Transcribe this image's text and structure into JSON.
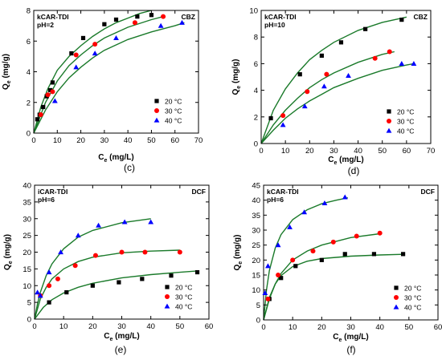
{
  "chart_data": [
    {
      "type": "scatter",
      "caption": "(c)",
      "corner_label": "CBZ",
      "note_lines": [
        "kCAR-TDI",
        "pH=2"
      ],
      "xlabel_main": "C",
      "xlabel_sub": "e",
      "xlabel_unit": " (mg/L)",
      "ylabel_main": "Q",
      "ylabel_sub": "e",
      "ylabel_unit": " (mg/g)",
      "xlim": [
        0,
        70
      ],
      "ylim": [
        0,
        8
      ],
      "xticks": [
        0,
        10,
        20,
        30,
        40,
        50,
        60,
        70
      ],
      "yticks": [
        0,
        2,
        4,
        6,
        8
      ],
      "legend_position": "bottom-right",
      "fit_lines": true,
      "series": [
        {
          "name": "20 °C",
          "marker": "square",
          "color": "#000000",
          "x": [
            1.5,
            2.5,
            4,
            5.5,
            7,
            8,
            16,
            21,
            30,
            35,
            44,
            50
          ],
          "y": [
            0.9,
            1.2,
            1.7,
            2.4,
            2.8,
            3.3,
            5.2,
            6.2,
            7.1,
            7.4,
            7.6,
            7.7
          ],
          "fit_x": [
            0,
            3,
            6,
            10,
            15,
            20,
            25,
            30,
            35,
            40,
            45,
            50
          ],
          "fit_y": [
            0,
            1.7,
            2.9,
            4.1,
            5.0,
            5.7,
            6.3,
            6.8,
            7.2,
            7.5,
            7.8,
            8.0
          ]
        },
        {
          "name": "30 °C",
          "marker": "circle",
          "color": "#ff0000",
          "x": [
            3,
            6,
            8,
            18,
            26,
            43,
            55
          ],
          "y": [
            1.2,
            2.5,
            2.7,
            5.1,
            5.8,
            7.2,
            7.6
          ],
          "fit_x": [
            0,
            5,
            10,
            15,
            20,
            25,
            30,
            40,
            50,
            55
          ],
          "fit_y": [
            0,
            2.0,
            3.4,
            4.4,
            5.1,
            5.7,
            6.2,
            6.9,
            7.4,
            7.6
          ]
        },
        {
          "name": "40 °C",
          "marker": "triangle",
          "color": "#0000ff",
          "x": [
            9,
            18,
            26,
            35,
            54,
            63
          ],
          "y": [
            2.1,
            4.3,
            5.2,
            6.2,
            7.0,
            7.2
          ],
          "fit_x": [
            0,
            5,
            10,
            15,
            20,
            25,
            30,
            40,
            50,
            60,
            64
          ],
          "fit_y": [
            0,
            1.5,
            2.7,
            3.6,
            4.3,
            4.9,
            5.4,
            6.1,
            6.6,
            7.0,
            7.2
          ]
        }
      ]
    },
    {
      "type": "scatter",
      "caption": "(d)",
      "corner_label": "CBZ",
      "note_lines": [
        "kCAR-TDI",
        "pH=10"
      ],
      "xlabel_main": "C",
      "xlabel_sub": "e",
      "xlabel_unit": " (mg/L)",
      "ylabel_main": "Q",
      "ylabel_sub": "e",
      "ylabel_unit": " (mg/g)",
      "xlim": [
        0,
        70
      ],
      "ylim": [
        0,
        10
      ],
      "xticks": [
        0,
        10,
        20,
        30,
        40,
        50,
        60,
        70
      ],
      "yticks": [
        0,
        2,
        4,
        6,
        8,
        10
      ],
      "legend_position": "bottom-right",
      "fit_lines": true,
      "series": [
        {
          "name": "20 °C",
          "marker": "square",
          "color": "#000000",
          "x": [
            4,
            16,
            25,
            33,
            43,
            58
          ],
          "y": [
            1.9,
            5.2,
            6.6,
            7.6,
            8.6,
            9.3
          ],
          "fit_x": [
            0,
            5,
            10,
            15,
            20,
            25,
            30,
            40,
            50,
            60
          ],
          "fit_y": [
            0,
            2.5,
            4.1,
            5.3,
            6.3,
            7.0,
            7.6,
            8.5,
            9.1,
            9.5
          ]
        },
        {
          "name": "30 °C",
          "marker": "circle",
          "color": "#ff0000",
          "x": [
            9,
            19,
            27,
            47,
            53
          ],
          "y": [
            2.1,
            3.9,
            5.2,
            6.4,
            6.9
          ],
          "fit_x": [
            0,
            5,
            10,
            15,
            20,
            25,
            30,
            40,
            50,
            55
          ],
          "fit_y": [
            0,
            1.4,
            2.5,
            3.4,
            4.2,
            4.8,
            5.3,
            6.1,
            6.7,
            6.9
          ]
        },
        {
          "name": "40 °C",
          "marker": "triangle",
          "color": "#0000ff",
          "x": [
            9,
            18,
            26,
            36,
            58,
            63
          ],
          "y": [
            1.4,
            2.8,
            4.3,
            5.1,
            6.0,
            6.0
          ],
          "fit_x": [
            0,
            5,
            10,
            15,
            20,
            25,
            30,
            40,
            50,
            60,
            63
          ],
          "fit_y": [
            0,
            1.0,
            1.9,
            2.6,
            3.2,
            3.7,
            4.2,
            4.9,
            5.5,
            5.9,
            6.0
          ]
        }
      ]
    },
    {
      "type": "scatter",
      "caption": "(e)",
      "corner_label": "DCF",
      "note_lines": [
        "iCAR-TDI",
        "pH=6"
      ],
      "xlabel_main": "C",
      "xlabel_sub": "e",
      "xlabel_unit": " (mg/L)",
      "ylabel_main": "Q",
      "ylabel_sub": "e",
      "ylabel_unit": " (mg/g)",
      "xlim": [
        0,
        60
      ],
      "ylim": [
        0,
        40
      ],
      "xticks": [
        0,
        10,
        20,
        30,
        40,
        50,
        60
      ],
      "yticks": [
        0,
        5,
        10,
        15,
        20,
        25,
        30,
        35,
        40
      ],
      "legend_position": "bottom-right",
      "fit_lines": true,
      "series": [
        {
          "name": "20 °C",
          "marker": "square",
          "color": "#000000",
          "x": [
            5,
            11,
            20,
            29,
            37,
            47,
            56
          ],
          "y": [
            5,
            8,
            10,
            11,
            12,
            13,
            14
          ],
          "fit_x": [
            0,
            3,
            6,
            10,
            15,
            20,
            30,
            40,
            50,
            56
          ],
          "fit_y": [
            0,
            3.5,
            5.8,
            7.8,
            9.5,
            10.7,
            12.3,
            13.3,
            14.0,
            14.4
          ]
        },
        {
          "name": "30 °C",
          "marker": "circle",
          "color": "#ff0000",
          "x": [
            2,
            5,
            8,
            14,
            21,
            30,
            38,
            50
          ],
          "y": [
            7,
            10,
            12,
            16,
            19,
            20,
            20,
            20
          ],
          "fit_x": [
            0,
            2,
            4,
            6,
            10,
            15,
            20,
            30,
            40,
            50
          ],
          "fit_y": [
            0,
            6.0,
            9.5,
            12.0,
            15.0,
            17.2,
            18.5,
            19.8,
            20.3,
            20.6
          ]
        },
        {
          "name": "40 °C",
          "marker": "triangle",
          "color": "#0000ff",
          "x": [
            1,
            2,
            5,
            9,
            15,
            22,
            31,
            40
          ],
          "y": [
            8,
            7,
            14,
            20,
            25,
            28,
            29,
            29
          ],
          "fit_x": [
            0,
            1,
            2,
            4,
            6,
            10,
            15,
            20,
            30,
            40
          ],
          "fit_y": [
            0,
            4.5,
            8.0,
            13.0,
            16.5,
            21.0,
            24.5,
            26.5,
            28.8,
            30.0
          ]
        }
      ]
    },
    {
      "type": "scatter",
      "caption": "(f)",
      "corner_label": "DCF",
      "note_lines": [
        "kCAR-TDI",
        "pH=6"
      ],
      "xlabel_main": "C",
      "xlabel_sub": "e",
      "xlabel_unit": " (mg/L)",
      "ylabel_main": "Q",
      "ylabel_sub": "e",
      "ylabel_unit": " (mg/g)",
      "xlim": [
        0,
        60
      ],
      "ylim": [
        0,
        45
      ],
      "xticks": [
        0,
        10,
        20,
        30,
        40,
        50,
        60
      ],
      "yticks": [
        0,
        5,
        10,
        15,
        20,
        25,
        30,
        35,
        40,
        45
      ],
      "legend_position": "bottom-right",
      "fit_lines": true,
      "series": [
        {
          "name": "20 °C",
          "marker": "square",
          "color": "#000000",
          "x": [
            2,
            6,
            11,
            20,
            28,
            38,
            48
          ],
          "y": [
            7,
            14,
            18,
            20,
            22,
            22,
            22
          ],
          "fit_x": [
            0,
            2,
            4,
            6,
            10,
            15,
            20,
            30,
            40,
            48
          ],
          "fit_y": [
            0,
            7.5,
            12.0,
            14.8,
            17.8,
            19.6,
            20.5,
            21.3,
            21.7,
            21.9
          ]
        },
        {
          "name": "30 °C",
          "marker": "circle",
          "color": "#ff0000",
          "x": [
            1.5,
            5,
            10,
            17,
            24,
            32,
            40
          ],
          "y": [
            7,
            15,
            20,
            23,
            26,
            28,
            29
          ],
          "fit_x": [
            0,
            2,
            4,
            6,
            10,
            15,
            20,
            30,
            40
          ],
          "fit_y": [
            0,
            7.0,
            12.0,
            15.5,
            20.0,
            23.0,
            25.0,
            27.5,
            28.8
          ]
        },
        {
          "name": "40 °C",
          "marker": "triangle",
          "color": "#0000ff",
          "x": [
            0.5,
            1.5,
            5,
            9,
            14,
            21,
            28
          ],
          "y": [
            9,
            18,
            25,
            31,
            36,
            39,
            41
          ],
          "fit_x": [
            0,
            1,
            2,
            4,
            6,
            10,
            15,
            20,
            25,
            29
          ],
          "fit_y": [
            0,
            10.0,
            16.5,
            24.0,
            28.5,
            33.5,
            36.8,
            38.8,
            40.0,
            40.8
          ]
        }
      ]
    }
  ]
}
